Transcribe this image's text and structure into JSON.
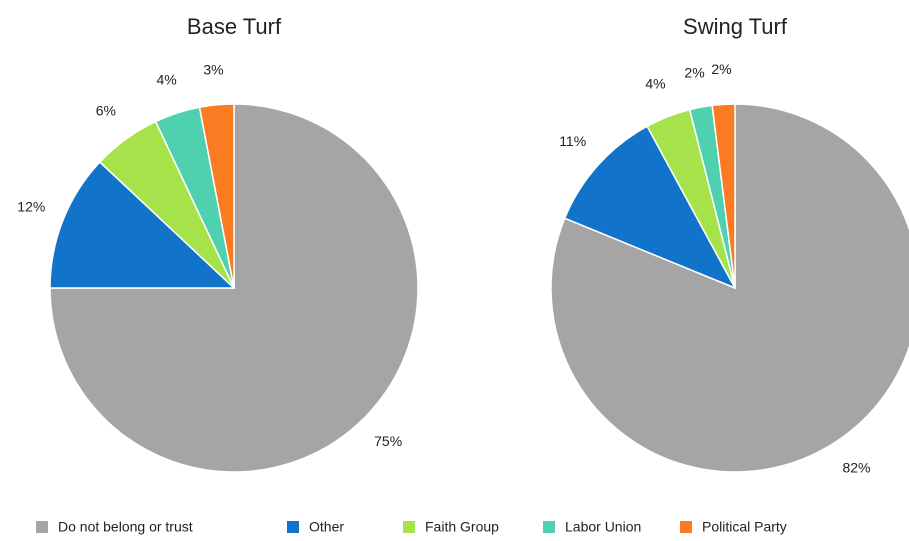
{
  "chart_data": [
    {
      "type": "pie",
      "title": "Base Turf",
      "categories": [
        "Do not belong or trust",
        "Other",
        "Faith Group",
        "Labor Union",
        "Political Party"
      ],
      "values": [
        75,
        12,
        6,
        4,
        3
      ],
      "value_labels": [
        "75%",
        "12%",
        "6%",
        "4%",
        "3%"
      ],
      "colors": [
        "#a5a5a5",
        "#1173c9",
        "#a6e34b",
        "#4fd1b0",
        "#fb7b22"
      ]
    },
    {
      "type": "pie",
      "title": "Swing Turf",
      "categories": [
        "Do not belong or trust",
        "Other",
        "Faith Group",
        "Labor Union",
        "Political Party"
      ],
      "values": [
        82,
        11,
        4,
        2,
        2
      ],
      "value_labels": [
        "82%",
        "11%",
        "4%",
        "2%",
        "2%"
      ],
      "colors": [
        "#a5a5a5",
        "#1173c9",
        "#a6e34b",
        "#4fd1b0",
        "#fb7b22"
      ]
    }
  ]
}
